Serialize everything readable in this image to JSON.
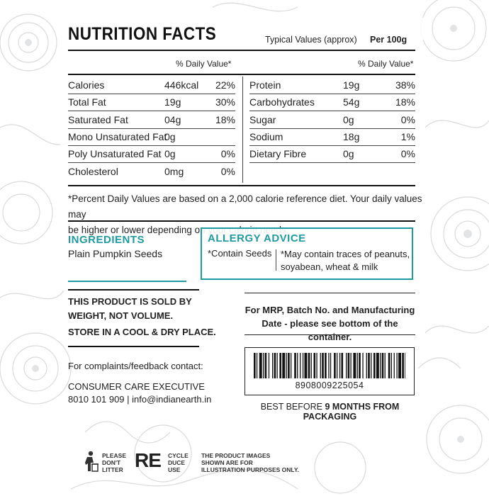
{
  "header": {
    "title": "NUTRITION FACTS",
    "typical": "Typical Values (approx)",
    "per": "Per 100g"
  },
  "daily_value_label": "% Daily Value*",
  "nutrition_left": [
    {
      "name": "Calories",
      "amount": "446kcal",
      "dv": "22%"
    },
    {
      "name": "Total Fat",
      "amount": "19g",
      "dv": "30%"
    },
    {
      "name": "Saturated Fat",
      "amount": "04g",
      "dv": "18%"
    },
    {
      "name": "Mono Unsaturated Fat",
      "amount": "0g",
      "dv": ""
    },
    {
      "name": "Poly Unsaturated Fat",
      "amount": "0g",
      "dv": "0%"
    },
    {
      "name": "Cholesterol",
      "amount": "0mg",
      "dv": "0%"
    }
  ],
  "nutrition_right": [
    {
      "name": "Protein",
      "amount": "19g",
      "dv": "38%"
    },
    {
      "name": "Carbohydrates",
      "amount": "54g",
      "dv": "18%"
    },
    {
      "name": "Sugar",
      "amount": "0g",
      "dv": "0%"
    },
    {
      "name": "Sodium",
      "amount": "18g",
      "dv": "1%"
    },
    {
      "name": "Dietary Fibre",
      "amount": "0g",
      "dv": "0%"
    }
  ],
  "footnote_line1": "*Percent Daily Values are based on a 2,000 calorie reference diet. Your daily values may",
  "footnote_line2": "be higher or lower depending on your calorie needs.",
  "ingredients": {
    "heading": "INGREDIENTS",
    "text": "Plain Pumpkin Seeds"
  },
  "allergy": {
    "heading": "ALLERGY ADVICE",
    "contains": "*Contain Seeds",
    "may_line1": "*May contain traces of peanuts,",
    "may_line2": "soyabean, wheat & milk"
  },
  "sold_line1": "THIS PRODUCT IS SOLD BY",
  "sold_line2": "WEIGHT, NOT VOLUME.",
  "store": "STORE IN A COOL & DRY PLACE.",
  "complaints": "For complaints/feedback contact:",
  "consumer_care": "CONSUMER CARE EXECUTIVE",
  "contact": "8010 101 909 | info@indianearth.in",
  "mrp_line1": "For MRP, Batch No. and Manufacturing",
  "mrp_line2": "Date - please see bottom of the container.",
  "barcode_number": "8908009225054",
  "best_before_prefix": "BEST BEFORE ",
  "best_before_value": "9 MONTHS FROM PACKAGING",
  "icons": {
    "litter_line1": "PLEASE",
    "litter_line2": "DON'T",
    "litter_line3": "LITTER",
    "re_big": "RE",
    "re_line1": "CYCLE",
    "re_line2": "DUCE",
    "re_line3": "USE",
    "disclaimer_line1": "THE PRODUCT IMAGES",
    "disclaimer_line2": "SHOWN ARE FOR",
    "disclaimer_line3": "ILLUSTRATION PURPOSES ONLY."
  },
  "colors": {
    "accent": "#1f9aa1",
    "text": "#222222"
  }
}
